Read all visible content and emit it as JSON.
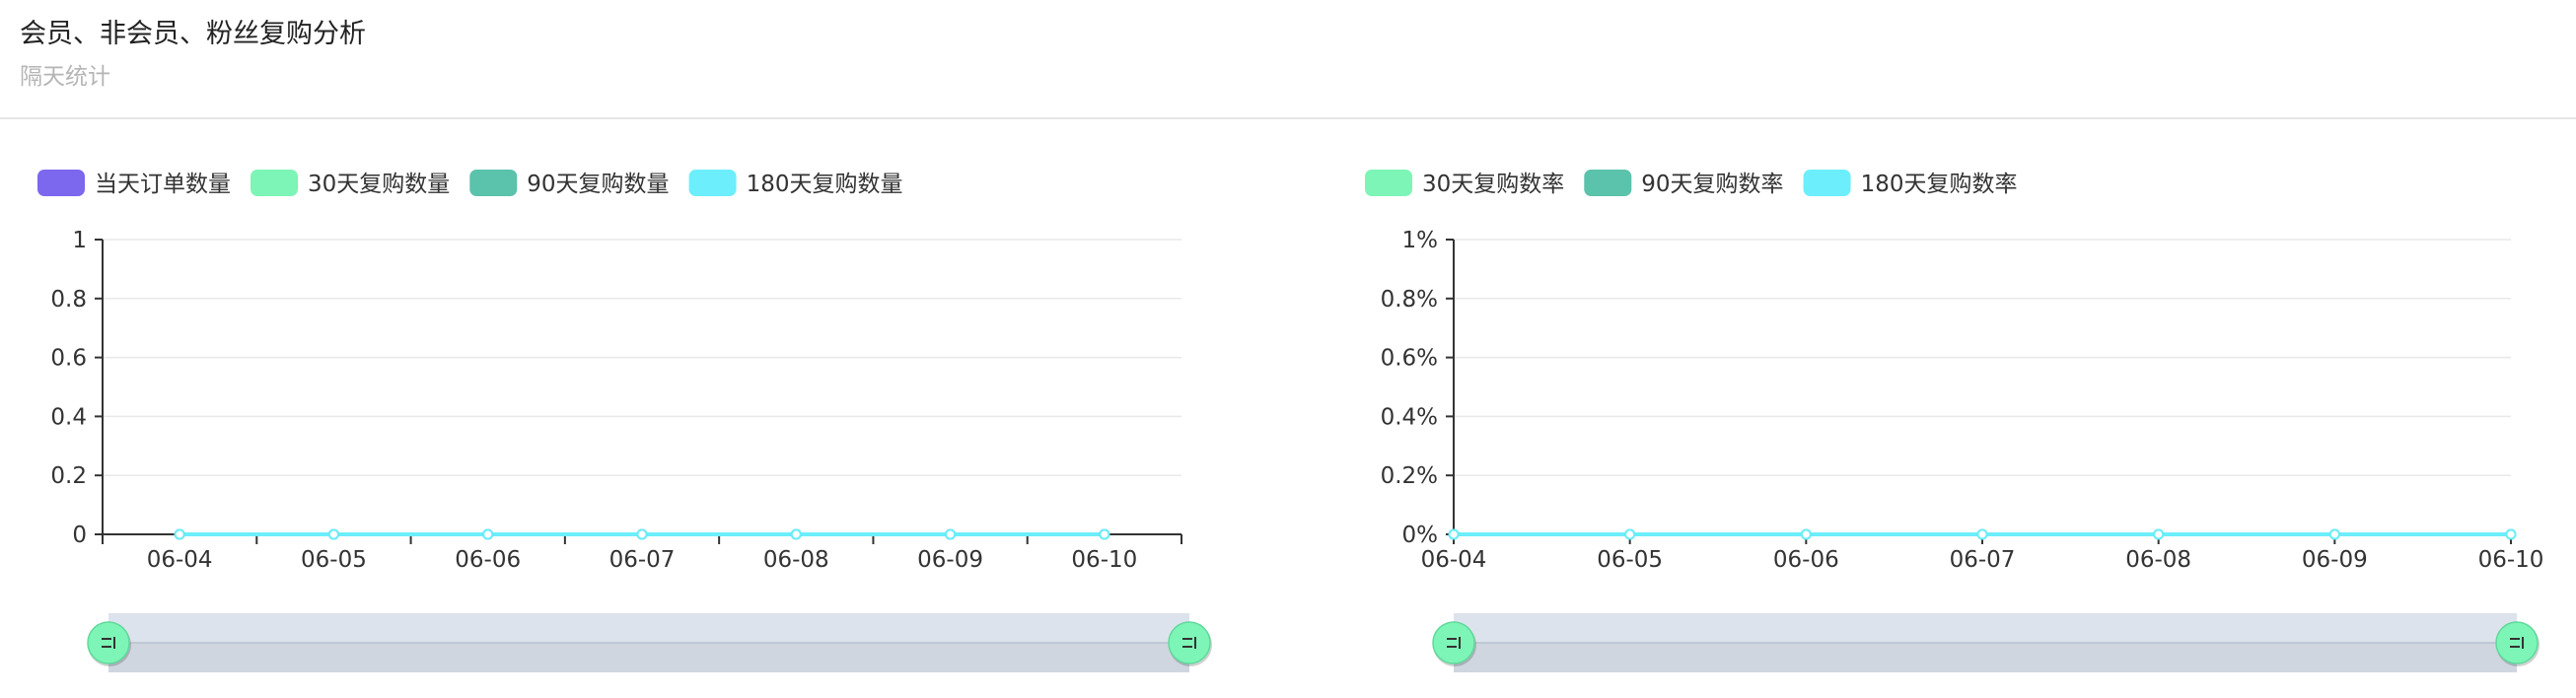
{
  "header": {
    "title": "会员、非会员、粉丝复购分析",
    "subtitle": "隔天统计"
  },
  "colors": {
    "order": "#7B68EE",
    "d30": "#7DF5B6",
    "d90": "#5BC2AB",
    "d180": "#6CEEFC",
    "axis": "#333333",
    "grid": "#e8e8e8",
    "zoom_fill": "#d4dae3",
    "zoom_handle": "#7DF5B6"
  },
  "chart_data": [
    {
      "type": "line",
      "categories": [
        "06-04",
        "06-05",
        "06-06",
        "06-07",
        "06-08",
        "06-09",
        "06-10"
      ],
      "y_ticks": [
        "0",
        "0.2",
        "0.4",
        "0.6",
        "0.8",
        "1"
      ],
      "ylim": [
        0,
        1
      ],
      "legend_position": "top-left",
      "grid": true,
      "series": [
        {
          "name": "当天订单数量",
          "color_key": "order",
          "values": [
            0,
            0,
            0,
            0,
            0,
            0,
            0
          ]
        },
        {
          "name": "30天复购数量",
          "color_key": "d30",
          "values": [
            0,
            0,
            0,
            0,
            0,
            0,
            0
          ]
        },
        {
          "name": "90天复购数量",
          "color_key": "d90",
          "values": [
            0,
            0,
            0,
            0,
            0,
            0,
            0
          ]
        },
        {
          "name": "180天复购数量",
          "color_key": "d180",
          "values": [
            0,
            0,
            0,
            0,
            0,
            0,
            0
          ]
        }
      ]
    },
    {
      "type": "line",
      "categories": [
        "06-04",
        "06-05",
        "06-06",
        "06-07",
        "06-08",
        "06-09",
        "06-10"
      ],
      "y_ticks": [
        "0%",
        "0.2%",
        "0.4%",
        "0.6%",
        "0.8%",
        "1%"
      ],
      "ylim": [
        0,
        1
      ],
      "legend_position": "top-left",
      "grid": true,
      "series": [
        {
          "name": "30天复购数率",
          "color_key": "d30",
          "values": [
            0,
            0,
            0,
            0,
            0,
            0,
            0
          ]
        },
        {
          "name": "90天复购数率",
          "color_key": "d90",
          "values": [
            0,
            0,
            0,
            0,
            0,
            0,
            0
          ]
        },
        {
          "name": "180天复购数率",
          "color_key": "d180",
          "values": [
            0,
            0,
            0,
            0,
            0,
            0,
            0
          ]
        }
      ]
    }
  ]
}
